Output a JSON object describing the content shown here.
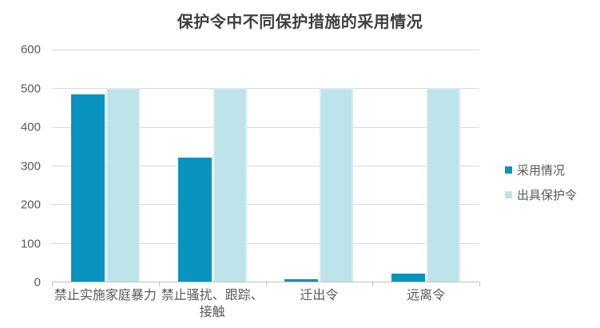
{
  "chart_data": {
    "type": "bar",
    "title": "保护令中不同保护措施的采用情况",
    "categories": [
      "禁止实施家庭暴力",
      "禁止骚扰、跟踪、接触",
      "迁出令",
      "远离令"
    ],
    "series": [
      {
        "name": "采用情况",
        "color": "#0894BE",
        "values": [
          485,
          320,
          6,
          21
        ]
      },
      {
        "name": "出具保护令",
        "color": "#BDE3EB",
        "values": [
          500,
          500,
          500,
          500
        ]
      }
    ],
    "ylim": [
      0,
      600
    ],
    "yticks": [
      0,
      100,
      200,
      300,
      400,
      500,
      600
    ],
    "grid": "horizontal",
    "legend_position": "right",
    "colors": {
      "grid": "#D9D9D9",
      "axis": "#BFBFBF",
      "tick_text": "#595959",
      "title_text": "#404040",
      "background": "#FFFFFF"
    }
  }
}
